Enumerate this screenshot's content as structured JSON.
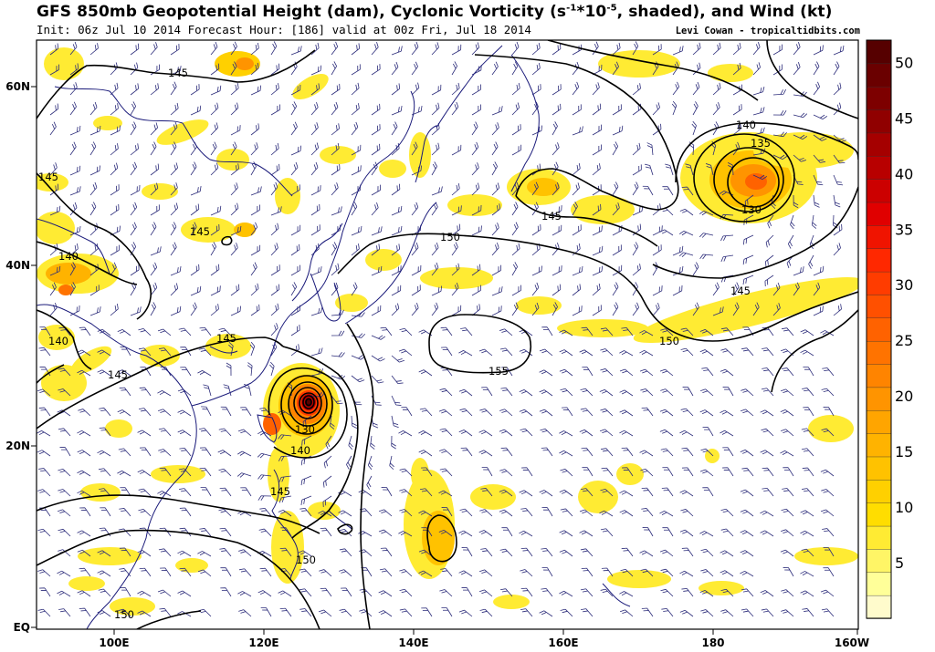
{
  "header": {
    "title_part1": "GFS 850mb Geopotential Height (dam), Cyclonic Vorticity (s",
    "title_sup": "-1",
    "title_part2": "*10",
    "title_sup2": "-5",
    "title_part3": ", shaded), and Wind (kt)",
    "init": "Init: 06z Jul 10 2014 Forecast Hour: [186] valid at 00z Fri, Jul 18 2014",
    "credit": "Levi Cowan - tropicaltidbits.com"
  },
  "axes": {
    "lat_labels": [
      "60N",
      "40N",
      "20N",
      "EQ"
    ],
    "lon_labels": [
      "100E",
      "120E",
      "140E",
      "160E",
      "180",
      "160W"
    ]
  },
  "colorbar": {
    "ticks": [
      "50",
      "45",
      "40",
      "35",
      "30",
      "25",
      "20",
      "15",
      "10",
      "5"
    ],
    "colors": [
      "#fffbcc",
      "#ffff99",
      "#fff566",
      "#ffeb33",
      "#ffdd00",
      "#ffd000",
      "#ffc200",
      "#ffb300",
      "#ffa500",
      "#ff9400",
      "#ff8400",
      "#ff7300",
      "#ff6200",
      "#ff5000",
      "#ff3c00",
      "#ff2800",
      "#f01400",
      "#e00000",
      "#cc0000",
      "#b80000",
      "#a50000",
      "#900000",
      "#7d0000",
      "#6a0000",
      "#560000"
    ]
  },
  "contour_labels": [
    {
      "text": "145"
    },
    {
      "text": "145"
    },
    {
      "text": "145"
    },
    {
      "text": "140"
    },
    {
      "text": "140"
    },
    {
      "text": "145"
    },
    {
      "text": "145"
    },
    {
      "text": "140"
    },
    {
      "text": "130"
    },
    {
      "text": "145"
    },
    {
      "text": "150"
    },
    {
      "text": "150"
    },
    {
      "text": "150"
    },
    {
      "text": "155"
    },
    {
      "text": "145"
    },
    {
      "text": "140"
    },
    {
      "text": "135"
    },
    {
      "text": "130"
    },
    {
      "text": "145"
    },
    {
      "text": "150"
    }
  ]
}
